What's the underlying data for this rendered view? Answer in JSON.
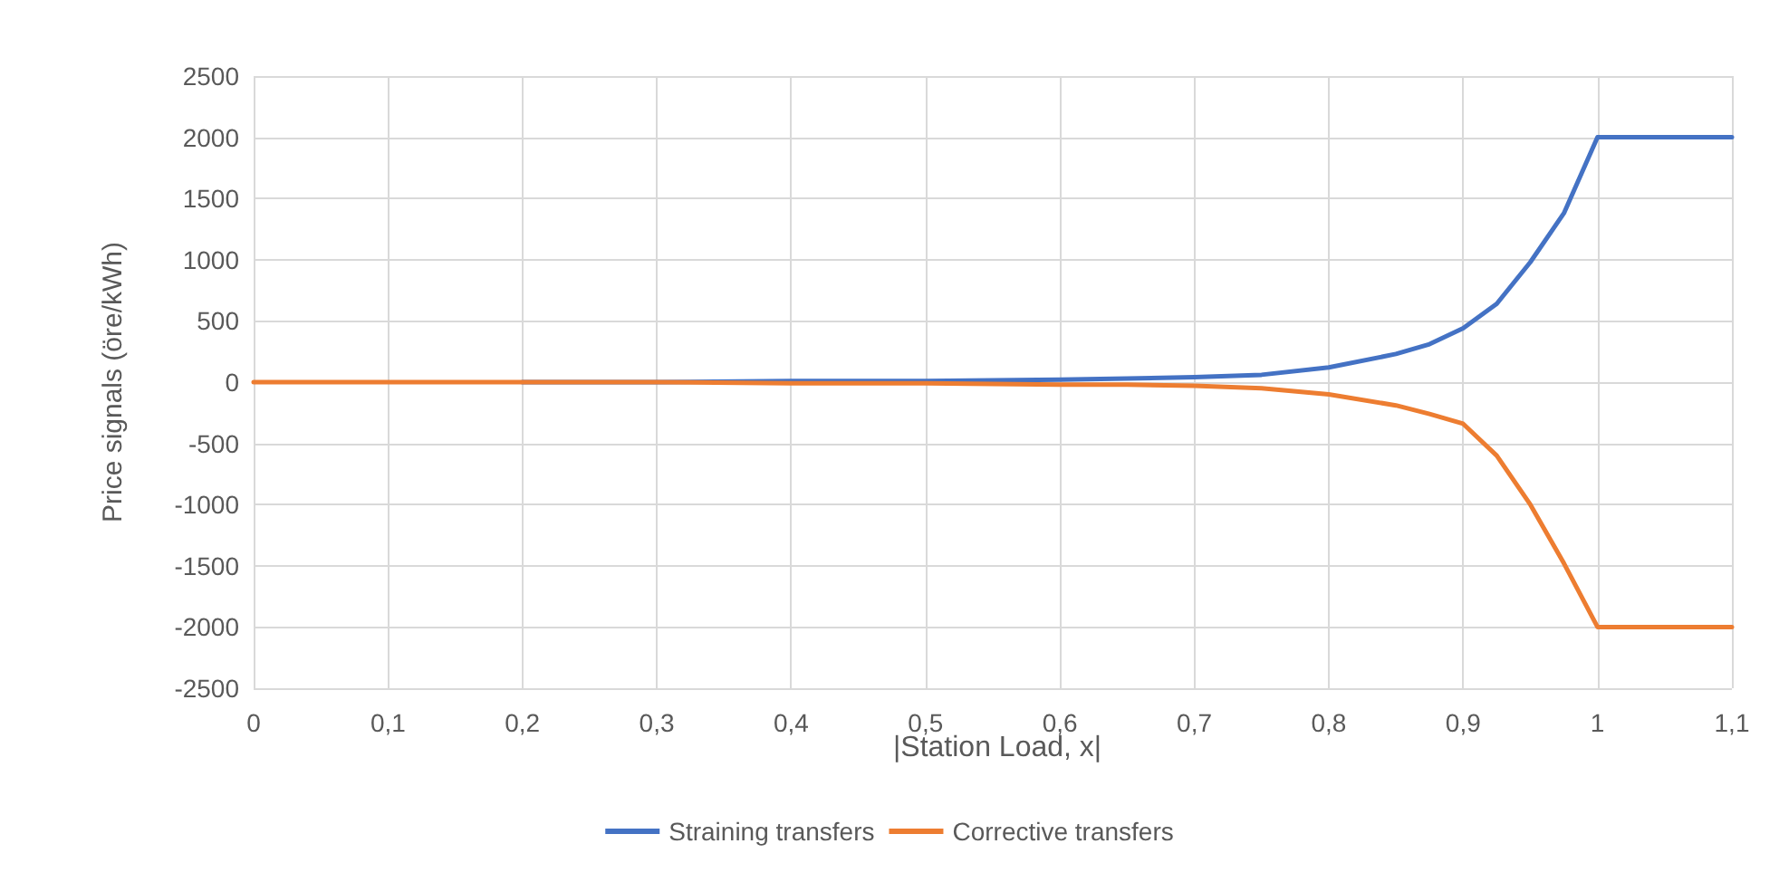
{
  "chart_data": {
    "type": "line",
    "xlabel": "|Station Load, x|",
    "ylabel": "Price signals (öre/kWh)",
    "x": [
      0,
      0.1,
      0.2,
      0.3,
      0.4,
      0.5,
      0.6,
      0.65,
      0.7,
      0.75,
      0.8,
      0.85,
      0.875,
      0.9,
      0.925,
      0.95,
      0.975,
      1,
      1.1
    ],
    "series": [
      {
        "name": "Straining transfers",
        "color": "#4472c4",
        "values": [
          null,
          null,
          0,
          0,
          10,
          10,
          20,
          30,
          40,
          60,
          120,
          230,
          310,
          440,
          640,
          980,
          1380,
          2000,
          2000
        ]
      },
      {
        "name": "Corrective transfers",
        "color": "#ed7d31",
        "values": [
          0,
          0,
          0,
          0,
          -10,
          -10,
          -20,
          -20,
          -30,
          -50,
          -100,
          -190,
          -260,
          -340,
          -600,
          -1000,
          -1480,
          -2000,
          -2000
        ]
      }
    ],
    "xlim": [
      0,
      1.1
    ],
    "xticks": [
      0,
      {
        "value": 0.1,
        "label": "0,1"
      },
      {
        "value": 0.2,
        "label": "0,2"
      },
      {
        "value": 0.3,
        "label": "0,3"
      },
      {
        "value": 0.4,
        "label": "0,4"
      },
      {
        "value": 0.5,
        "label": "0,5"
      },
      {
        "value": 0.6,
        "label": "0,6"
      },
      {
        "value": 0.7,
        "label": "0,7"
      },
      {
        "value": 0.8,
        "label": "0,8"
      },
      {
        "value": 0.9,
        "label": "0,9"
      },
      1,
      {
        "value": 1.1,
        "label": "1,1"
      }
    ],
    "ylim": [
      -2500,
      2500
    ],
    "yticks": [
      -2500,
      -2000,
      -1500,
      -1000,
      -500,
      0,
      500,
      1000,
      1500,
      2000,
      2500
    ],
    "grid": true,
    "legend": "bottom",
    "marker": "none",
    "line_style": "solid"
  }
}
